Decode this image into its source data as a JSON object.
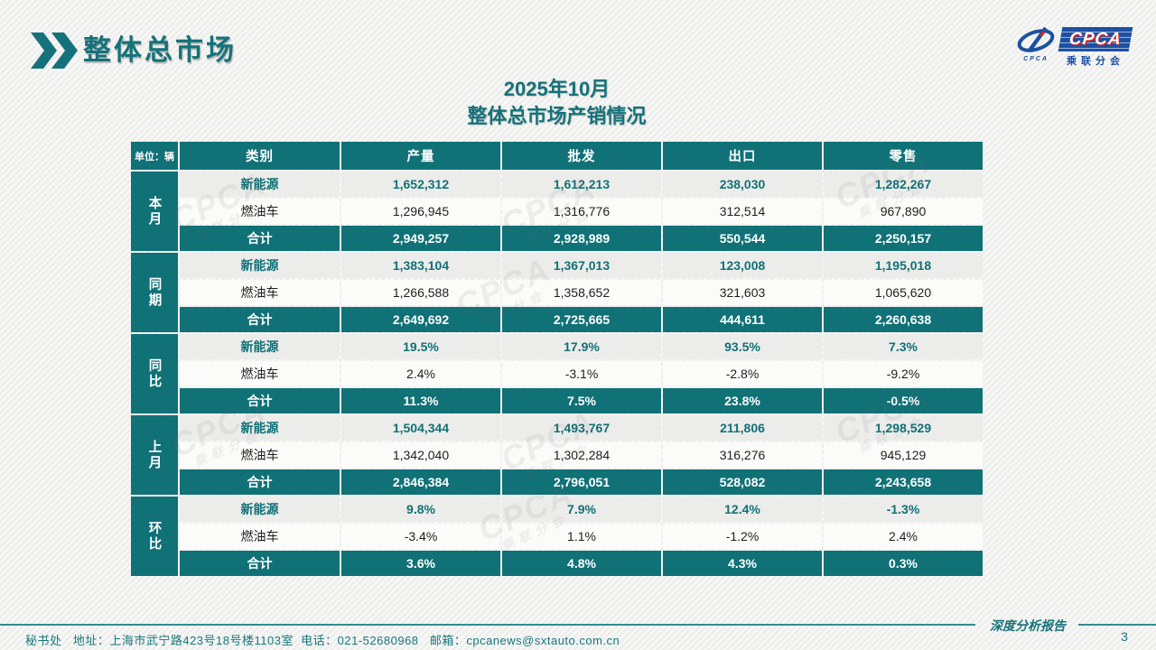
{
  "header": {
    "title": "整体总市场"
  },
  "logo": {
    "emblem_caption": "CPCA",
    "box_text": "CPCA",
    "sub_text": "乘联分会"
  },
  "table_title": {
    "line1": "2025年10月",
    "line2": "整体总市场产销情况"
  },
  "table": {
    "unit_label": "单位：辆",
    "columns": [
      "类别",
      "产量",
      "批发",
      "出口",
      "零售"
    ],
    "groups": [
      {
        "label": "本月",
        "rows": [
          {
            "category": "新能源",
            "values": [
              "1,652,312",
              "1,612,213",
              "238,030",
              "1,282,267"
            ]
          },
          {
            "category": "燃油车",
            "values": [
              "1,296,945",
              "1,316,776",
              "312,514",
              "967,890"
            ]
          },
          {
            "category": "合计",
            "values": [
              "2,949,257",
              "2,928,989",
              "550,544",
              "2,250,157"
            ]
          }
        ]
      },
      {
        "label": "同期",
        "rows": [
          {
            "category": "新能源",
            "values": [
              "1,383,104",
              "1,367,013",
              "123,008",
              "1,195,018"
            ]
          },
          {
            "category": "燃油车",
            "values": [
              "1,266,588",
              "1,358,652",
              "321,603",
              "1,065,620"
            ]
          },
          {
            "category": "合计",
            "values": [
              "2,649,692",
              "2,725,665",
              "444,611",
              "2,260,638"
            ]
          }
        ]
      },
      {
        "label": "同比",
        "rows": [
          {
            "category": "新能源",
            "values": [
              "19.5%",
              "17.9%",
              "93.5%",
              "7.3%"
            ]
          },
          {
            "category": "燃油车",
            "values": [
              "2.4%",
              "-3.1%",
              "-2.8%",
              "-9.2%"
            ]
          },
          {
            "category": "合计",
            "values": [
              "11.3%",
              "7.5%",
              "23.8%",
              "-0.5%"
            ]
          }
        ]
      },
      {
        "label": "上月",
        "rows": [
          {
            "category": "新能源",
            "values": [
              "1,504,344",
              "1,493,767",
              "211,806",
              "1,298,529"
            ]
          },
          {
            "category": "燃油车",
            "values": [
              "1,342,040",
              "1,302,284",
              "316,276",
              "945,129"
            ]
          },
          {
            "category": "合计",
            "values": [
              "2,846,384",
              "2,796,051",
              "528,082",
              "2,243,658"
            ]
          }
        ]
      },
      {
        "label": "环比",
        "rows": [
          {
            "category": "新能源",
            "values": [
              "9.8%",
              "7.9%",
              "12.4%",
              "-1.3%"
            ]
          },
          {
            "category": "燃油车",
            "values": [
              "-3.4%",
              "1.1%",
              "-1.2%",
              "2.4%"
            ]
          },
          {
            "category": "合计",
            "values": [
              "3.6%",
              "4.8%",
              "4.3%",
              "0.3%"
            ]
          }
        ]
      }
    ]
  },
  "watermark": {
    "text": "CPCA",
    "subtext": "乘联分会"
  },
  "footer": {
    "info": "秘书处   地址：上海市武宁路423号18号楼1103室  电话：021-52680968   邮箱：cpcanews@sxtauto.com.cn",
    "report_label": "深度分析报告",
    "page_number": "3"
  },
  "colors": {
    "teal": "#107177",
    "teal_title": "#15727A",
    "footer_line": "#2F8D91",
    "logo_blue": "#1D50A2",
    "logo_red": "#D6231F",
    "row_light": "#ECECEA",
    "row_white": "#FBFBFA",
    "background": "#F2F2F0"
  }
}
